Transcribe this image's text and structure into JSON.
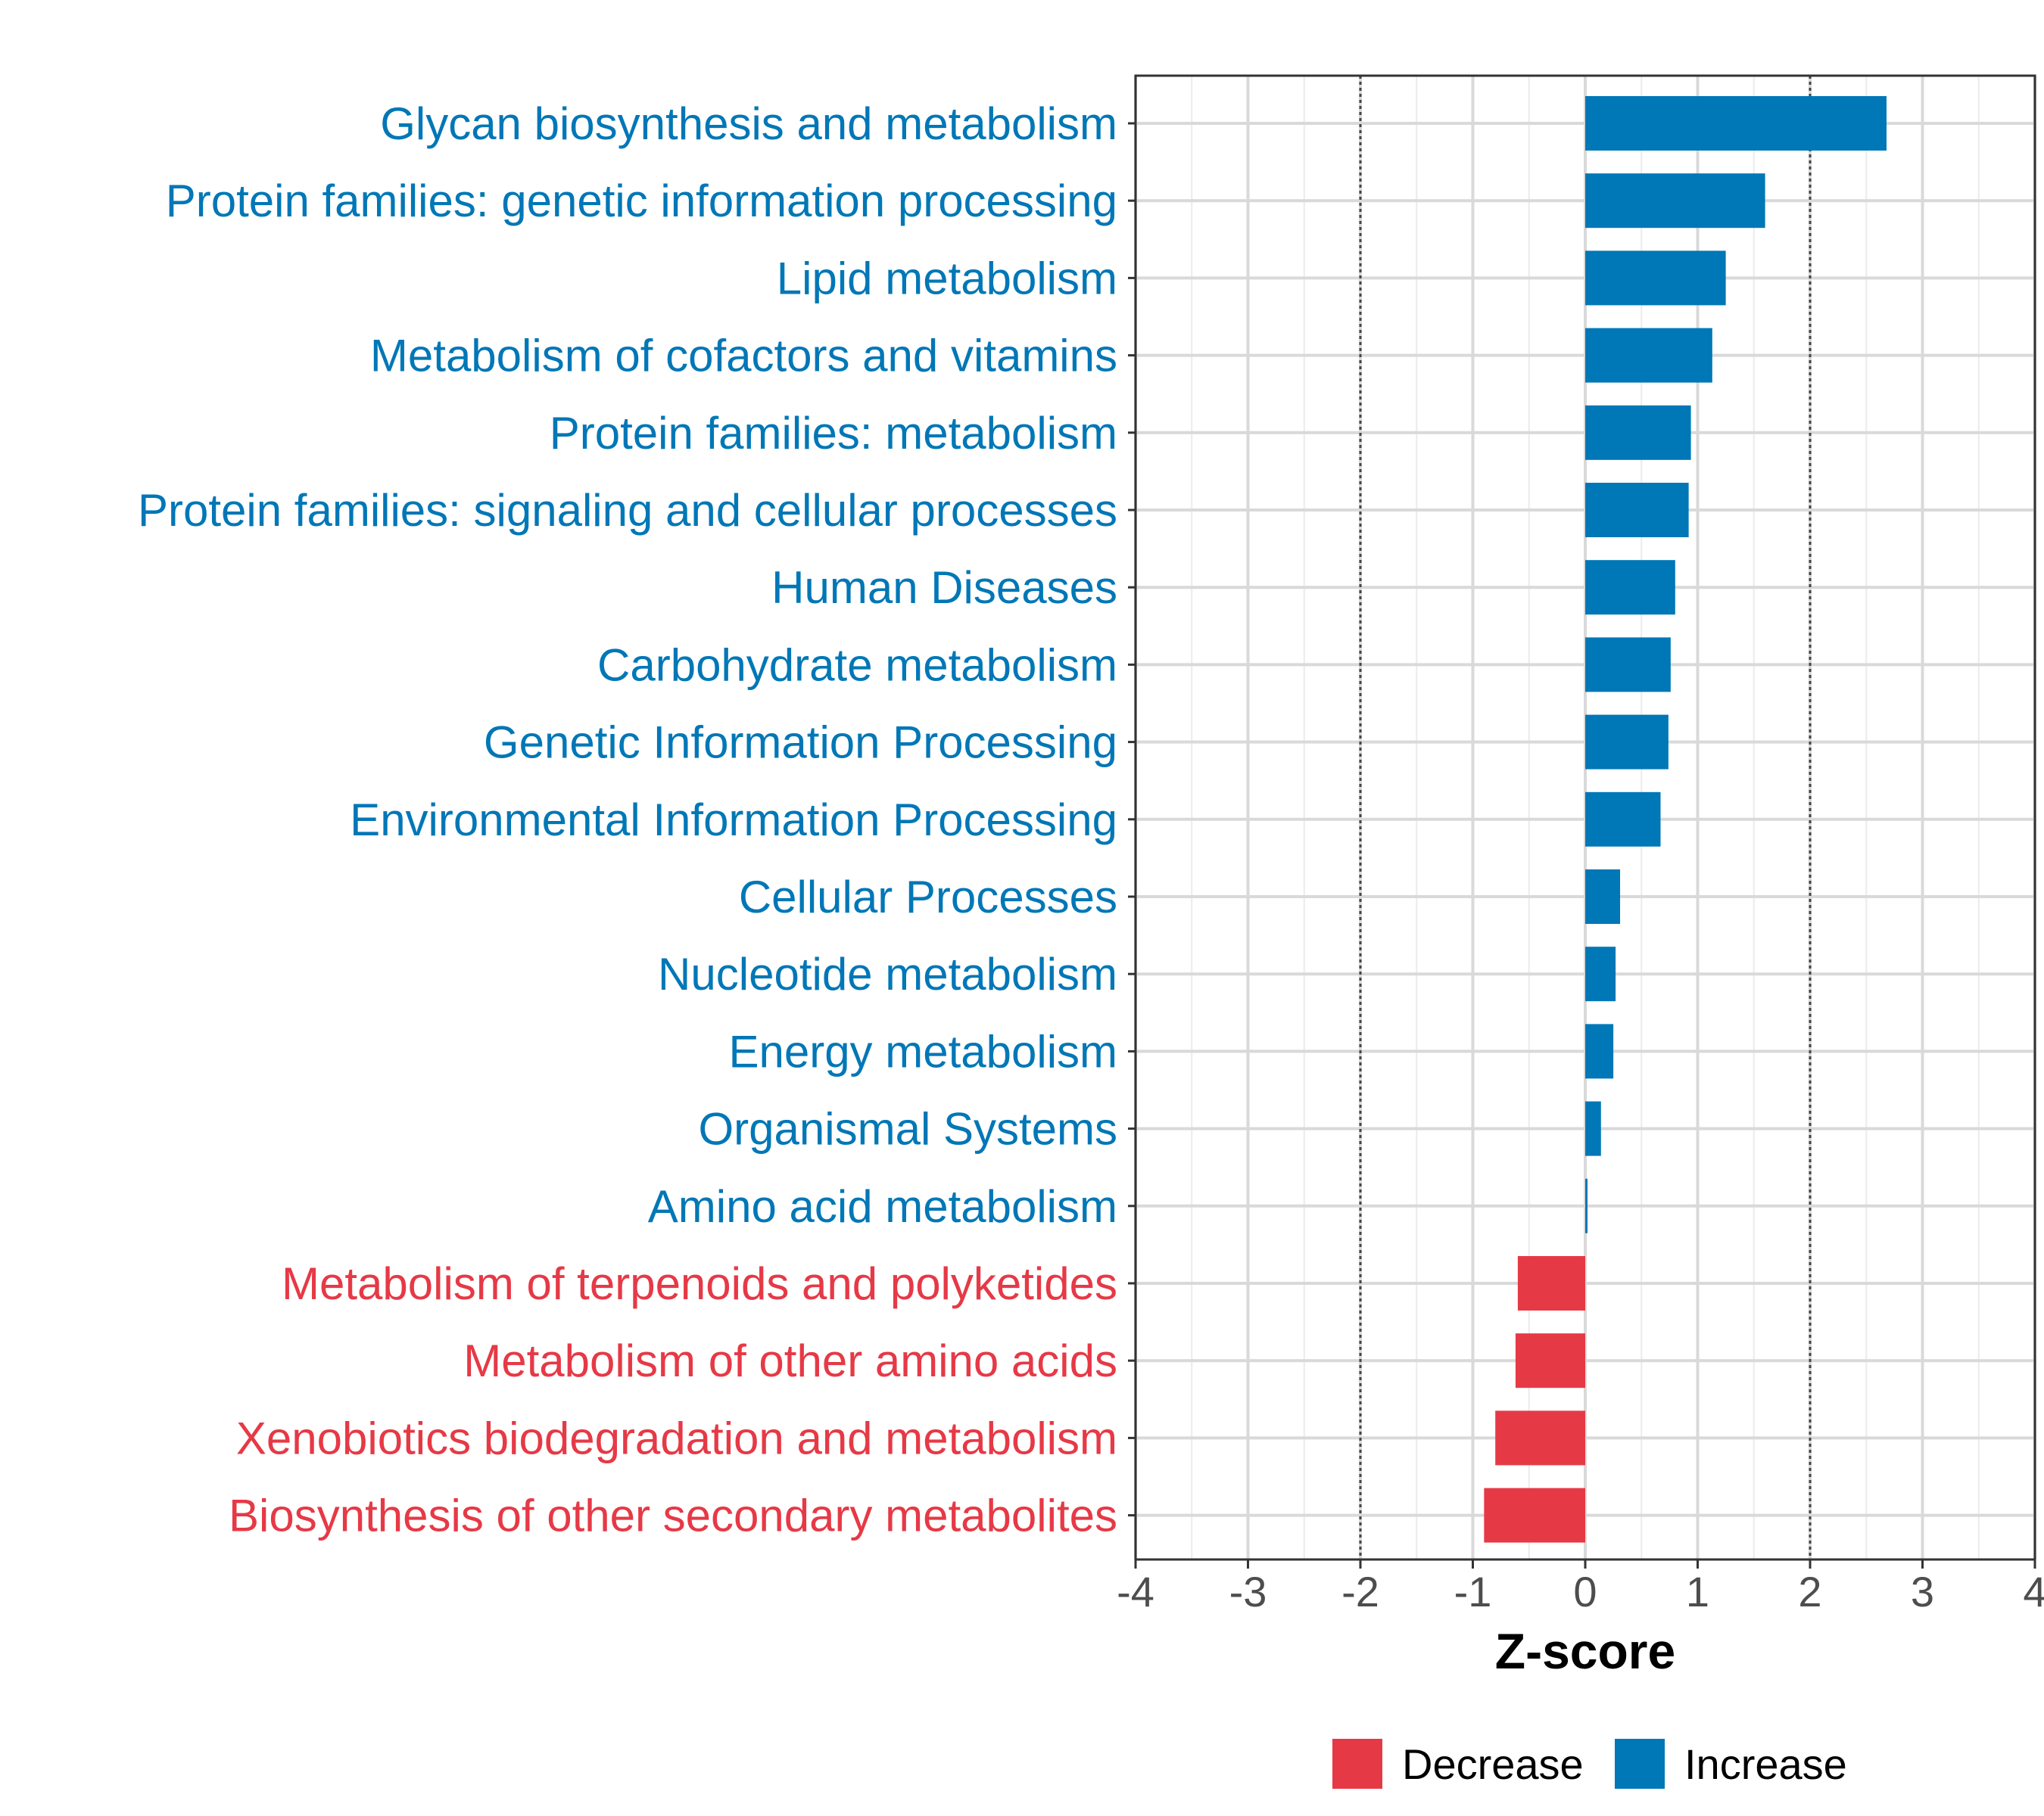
{
  "chart_data": {
    "type": "bar",
    "orientation": "horizontal",
    "title": "",
    "xlabel": "Z-score",
    "ylabel": "",
    "xlim": [
      -4,
      4
    ],
    "xticks": [
      -4,
      -3,
      -2,
      -1,
      0,
      1,
      2,
      3,
      4
    ],
    "xtick_labels": [
      "-4",
      "-3",
      "-2",
      "-1",
      "0",
      "1",
      "2",
      "3",
      "4"
    ],
    "reference_lines": [
      -2,
      2
    ],
    "grid": true,
    "categories": [
      "Glycan biosynthesis and metabolism",
      "Protein families: genetic information processing",
      "Lipid metabolism",
      "Metabolism of cofactors and vitamins",
      "Protein families: metabolism",
      "Protein families: signaling and cellular processes",
      "Human Diseases",
      "Carbohydrate metabolism",
      "Genetic Information Processing",
      "Environmental Information Processing",
      "Cellular Processes",
      "Nucleotide metabolism",
      "Energy metabolism",
      "Organismal Systems",
      "Amino acid metabolism",
      "Metabolism of terpenoids and polyketides",
      "Metabolism of other amino acids",
      "Xenobiotics biodegradation and metabolism",
      "Biosynthesis of other secondary metabolites"
    ],
    "values": [
      2.68,
      1.6,
      1.25,
      1.13,
      0.94,
      0.92,
      0.8,
      0.76,
      0.74,
      0.67,
      0.31,
      0.27,
      0.25,
      0.14,
      0.02,
      -0.6,
      -0.62,
      -0.8,
      -0.9
    ],
    "groups": [
      "Increase",
      "Increase",
      "Increase",
      "Increase",
      "Increase",
      "Increase",
      "Increase",
      "Increase",
      "Increase",
      "Increase",
      "Increase",
      "Increase",
      "Increase",
      "Increase",
      "Increase",
      "Decrease",
      "Decrease",
      "Decrease",
      "Decrease"
    ],
    "legend": {
      "position": "bottom",
      "entries": [
        {
          "label": "Decrease",
          "color": "#E63946"
        },
        {
          "label": "Increase",
          "color": "#0077B6"
        }
      ]
    },
    "colors": {
      "Increase": "#0077B6",
      "Decrease": "#E63946"
    }
  }
}
